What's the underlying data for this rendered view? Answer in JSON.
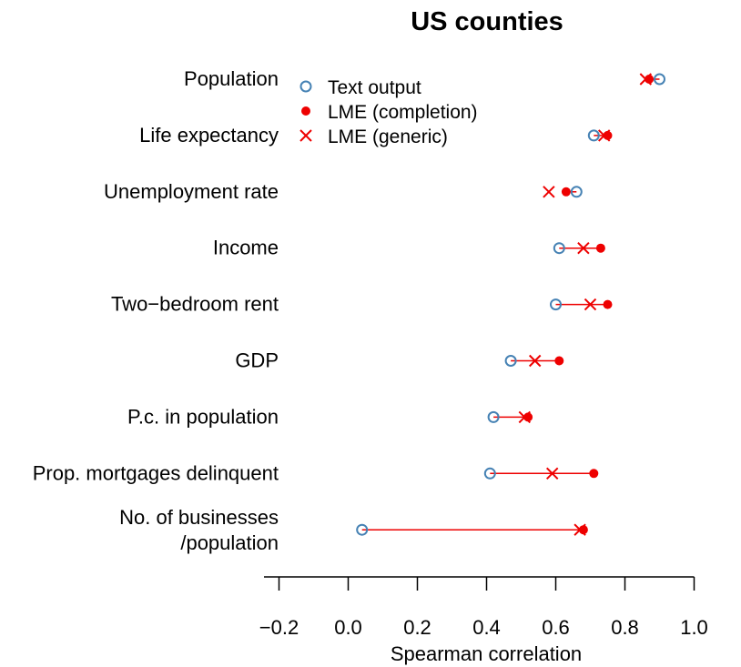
{
  "chart_data": {
    "type": "scatter",
    "title": "US counties",
    "xlabel": "Spearman correlation",
    "xlim": [
      -0.25,
      1.0
    ],
    "x_ticks": [
      "−0.2",
      "0.0",
      "0.2",
      "0.4",
      "0.6",
      "0.8",
      "1.0"
    ],
    "x_tick_values": [
      -0.2,
      0.0,
      0.2,
      0.4,
      0.6,
      0.8,
      1.0
    ],
    "categories": [
      [
        "Population"
      ],
      [
        "Life expectancy"
      ],
      [
        "Unemployment rate"
      ],
      [
        "Income"
      ],
      [
        "Two−bedroom rent"
      ],
      [
        "GDP"
      ],
      [
        "P.c. in population"
      ],
      [
        "Prop. mortgages delinquent"
      ],
      [
        "No. of businesses",
        "/population"
      ]
    ],
    "series": [
      {
        "name": "Text output",
        "marker": "open-circle",
        "color": "#4682B4",
        "values": [
          0.9,
          0.71,
          0.66,
          0.61,
          0.6,
          0.47,
          0.42,
          0.41,
          0.04
        ]
      },
      {
        "name": "LME (completion)",
        "marker": "filled-circle",
        "color": "#EE0000",
        "values": [
          0.87,
          0.75,
          0.63,
          0.73,
          0.75,
          0.61,
          0.52,
          0.71,
          0.68
        ]
      },
      {
        "name": "LME (generic)",
        "marker": "cross",
        "color": "#EE0000",
        "values": [
          0.86,
          0.74,
          0.58,
          0.68,
          0.7,
          0.54,
          0.51,
          0.59,
          0.67
        ]
      }
    ],
    "legend_position": "top-left",
    "grid": false
  }
}
